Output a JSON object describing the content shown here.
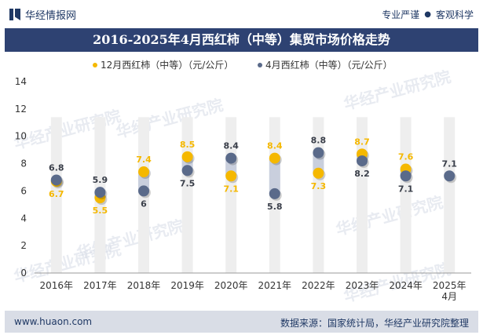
{
  "header": {
    "brand": "华经情报网",
    "tag1": "专业严谨",
    "tag_sep": "●",
    "tag2": "客观科学"
  },
  "watermark": "华经产业研究院",
  "colors": {
    "title_bg": "#2e4272",
    "series1": "#f5b800",
    "series2": "#5a6a8a",
    "label1": "#f5b800",
    "label2": "#3a3f4a",
    "band": "#eeeeee",
    "band_highlight": "#c9cfdd"
  },
  "chart_data": {
    "type": "scatter",
    "title": "2016-2025年4月西红柿（中等）集贸市场价格走势",
    "categories": [
      "2016年",
      "2017年",
      "2018年",
      "2019年",
      "2020年",
      "2021年",
      "2022年",
      "2023年",
      "2024年",
      "2025年\n4月"
    ],
    "series": [
      {
        "name": "12月西红柿（中等）（元/公斤）",
        "values": [
          6.7,
          5.5,
          7.4,
          8.5,
          7.1,
          8.4,
          7.3,
          8.7,
          7.6,
          null
        ]
      },
      {
        "name": "4月西红柿（中等）（元/公斤）",
        "values": [
          6.8,
          5.9,
          6.0,
          7.5,
          8.4,
          5.8,
          8.8,
          8.2,
          7.1,
          7.1
        ]
      }
    ],
    "data_labels": {
      "series1": [
        "6.7",
        "5.5",
        "7.4",
        "8.5",
        "7.1",
        "8.4",
        "7.3",
        "8.7",
        "7.6",
        ""
      ],
      "series2": [
        "6.8",
        "5.9",
        "6",
        "7.5",
        "8.4",
        "5.8",
        "8.8",
        "8.2",
        "7.1",
        "7.1"
      ]
    },
    "ylim": [
      0,
      14
    ],
    "yticks": [
      0,
      2,
      4,
      6,
      8,
      10,
      12,
      14
    ],
    "band_top": 11.4,
    "xlabel": "",
    "ylabel": ""
  },
  "footer": {
    "website": "www.huaon.com",
    "source": "数据来源：国家统计局，华经产业研究院整理"
  }
}
